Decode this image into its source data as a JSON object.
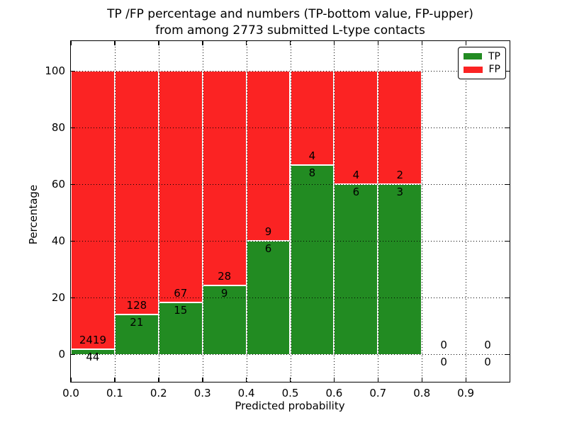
{
  "title": {
    "line1": "TP /FP percentage and numbers (TP-bottom value, FP-upper)",
    "line2": "from among 2773 submitted L-type contacts"
  },
  "legend": {
    "items": [
      {
        "label": "TP",
        "color": "#228b22"
      },
      {
        "label": "FP",
        "color": "#fb2323"
      }
    ]
  },
  "chart_data": {
    "type": "bar",
    "stacked": true,
    "title": "TP /FP percentage and numbers (TP-bottom value, FP-upper) from among 2773 submitted L-type contacts",
    "xlabel": "Predicted probability",
    "ylabel": "Percentage",
    "xlim": [
      0.0,
      1.0
    ],
    "ylim_percent": [
      -10.5,
      110.25
    ],
    "x_ticks": [
      "0.0",
      "0.1",
      "0.2",
      "0.3",
      "0.4",
      "0.5",
      "0.6",
      "0.7",
      "0.8",
      "0.9"
    ],
    "y_ticks": [
      0,
      20,
      40,
      60,
      80,
      100
    ],
    "grid": true,
    "legend_position": "upper right",
    "total_contacts": 2773,
    "series": [
      {
        "name": "TP",
        "color": "#228b22"
      },
      {
        "name": "FP",
        "color": "#fb2323"
      }
    ],
    "bins": [
      {
        "range": "0.0-0.1",
        "tp_count": 44,
        "fp_count": 2419,
        "tp_pct": 1.79,
        "fp_pct": 98.21
      },
      {
        "range": "0.1-0.2",
        "tp_count": 21,
        "fp_count": 128,
        "tp_pct": 14.09,
        "fp_pct": 85.91
      },
      {
        "range": "0.2-0.3",
        "tp_count": 15,
        "fp_count": 67,
        "tp_pct": 18.29,
        "fp_pct": 81.71
      },
      {
        "range": "0.3-0.4",
        "tp_count": 9,
        "fp_count": 28,
        "tp_pct": 24.32,
        "fp_pct": 75.68
      },
      {
        "range": "0.4-0.5",
        "tp_count": 6,
        "fp_count": 9,
        "tp_pct": 40.0,
        "fp_pct": 60.0
      },
      {
        "range": "0.5-0.6",
        "tp_count": 8,
        "fp_count": 4,
        "tp_pct": 66.67,
        "fp_pct": 33.33
      },
      {
        "range": "0.6-0.7",
        "tp_count": 6,
        "fp_count": 4,
        "tp_pct": 60.0,
        "fp_pct": 40.0
      },
      {
        "range": "0.7-0.8",
        "tp_count": 3,
        "fp_count": 2,
        "tp_pct": 60.0,
        "fp_pct": 40.0
      },
      {
        "range": "0.8-0.9",
        "tp_count": 0,
        "fp_count": 0,
        "tp_pct": 0,
        "fp_pct": 0
      },
      {
        "range": "0.9-1.0",
        "tp_count": 0,
        "fp_count": 0,
        "tp_pct": 0,
        "fp_pct": 0
      }
    ]
  }
}
